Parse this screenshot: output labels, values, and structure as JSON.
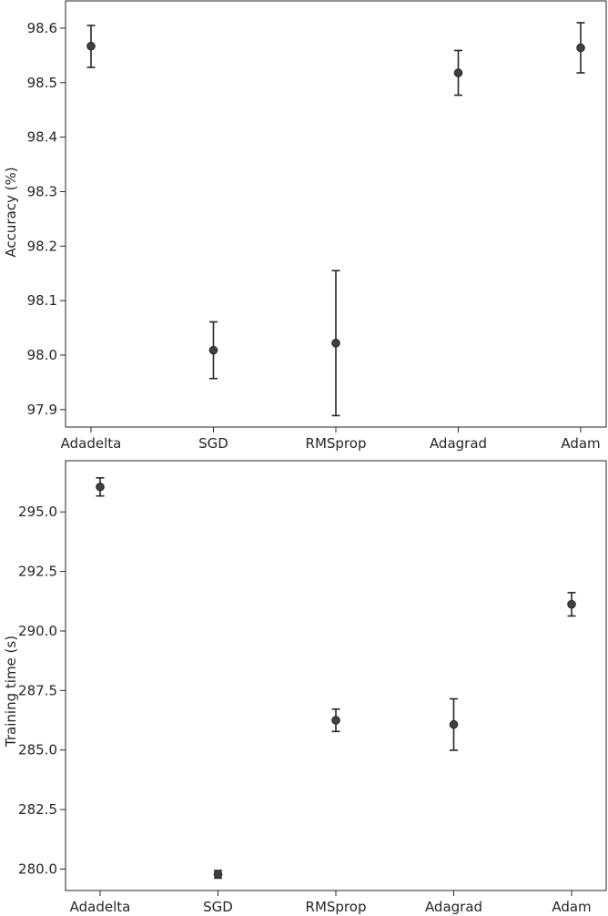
{
  "chart_data": [
    {
      "type": "scatter",
      "title": "",
      "xlabel": "",
      "ylabel": "Accuracy (%)",
      "categories": [
        "Adadelta",
        "SGD",
        "RMSprop",
        "Adagrad",
        "Adam"
      ],
      "values": [
        98.567,
        98.009,
        98.022,
        98.518,
        98.564
      ],
      "error_low": [
        98.528,
        97.957,
        97.889,
        98.477,
        98.518
      ],
      "error_high": [
        98.605,
        98.061,
        98.155,
        98.559,
        98.61
      ],
      "ylim": [
        97.868,
        98.65
      ],
      "yticks": [
        97.9,
        98.0,
        98.1,
        98.2,
        98.3,
        98.4,
        98.5,
        98.6
      ],
      "ytick_labels": [
        "97.9",
        "98.0",
        "98.1",
        "98.2",
        "98.3",
        "98.4",
        "98.5",
        "98.6"
      ],
      "grid": false,
      "error_bars": true
    },
    {
      "type": "scatter",
      "title": "",
      "xlabel": "",
      "ylabel": "Training  time (s)",
      "categories": [
        "Adadelta",
        "SGD",
        "RMSprop",
        "Adagrad",
        "Adam"
      ],
      "values": [
        296.05,
        279.78,
        286.25,
        286.07,
        291.12
      ],
      "error_low": [
        295.67,
        279.62,
        285.78,
        284.99,
        290.63
      ],
      "error_high": [
        296.43,
        279.94,
        286.72,
        287.15,
        291.61
      ],
      "ylim": [
        279.1,
        297.15
      ],
      "yticks": [
        280.0,
        282.5,
        285.0,
        287.5,
        290.0,
        292.5,
        295.0
      ],
      "ytick_labels": [
        "280.0",
        "282.5",
        "285.0",
        "287.5",
        "290.0",
        "292.5",
        "295.0"
      ],
      "grid": false,
      "error_bars": true
    }
  ]
}
